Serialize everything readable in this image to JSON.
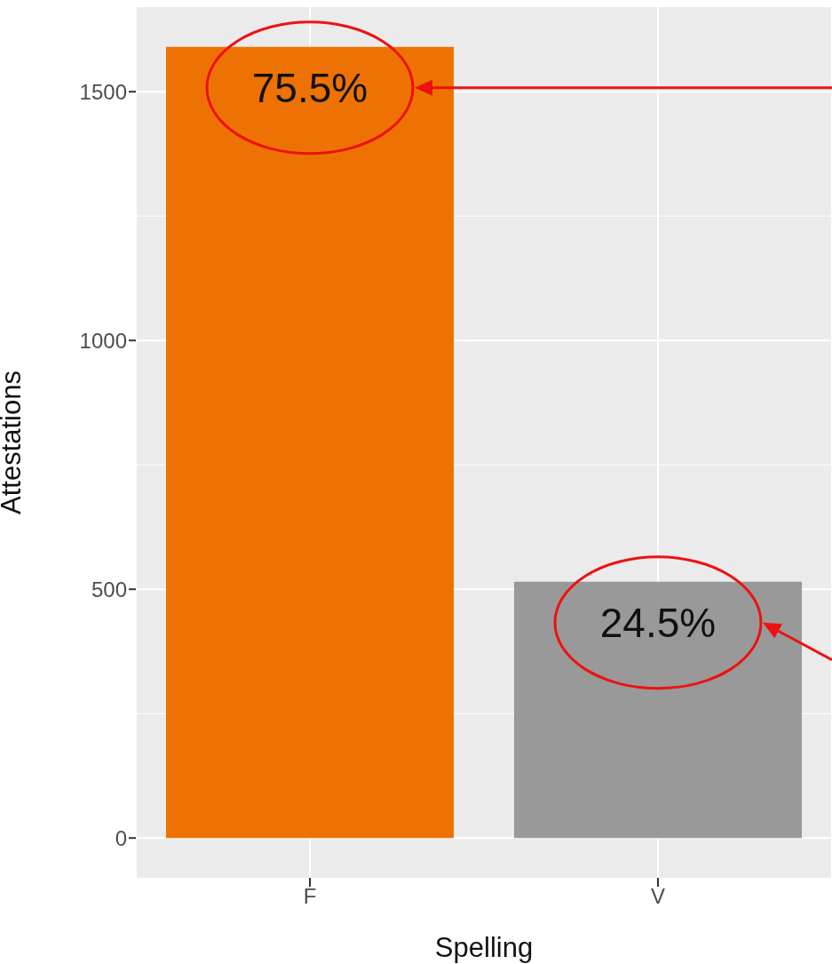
{
  "chart_data": {
    "type": "bar",
    "xlabel": "Spelling",
    "ylabel": "Attestations",
    "categories": [
      "F",
      "V"
    ],
    "values": [
      1590,
      515
    ],
    "colors": [
      "#ee7203",
      "#999999"
    ],
    "ylim": [
      -80,
      1670
    ],
    "yticks": [
      0,
      500,
      1000,
      1500
    ],
    "grid": true,
    "annotations": [
      "75.5%",
      "24.5%"
    ]
  }
}
